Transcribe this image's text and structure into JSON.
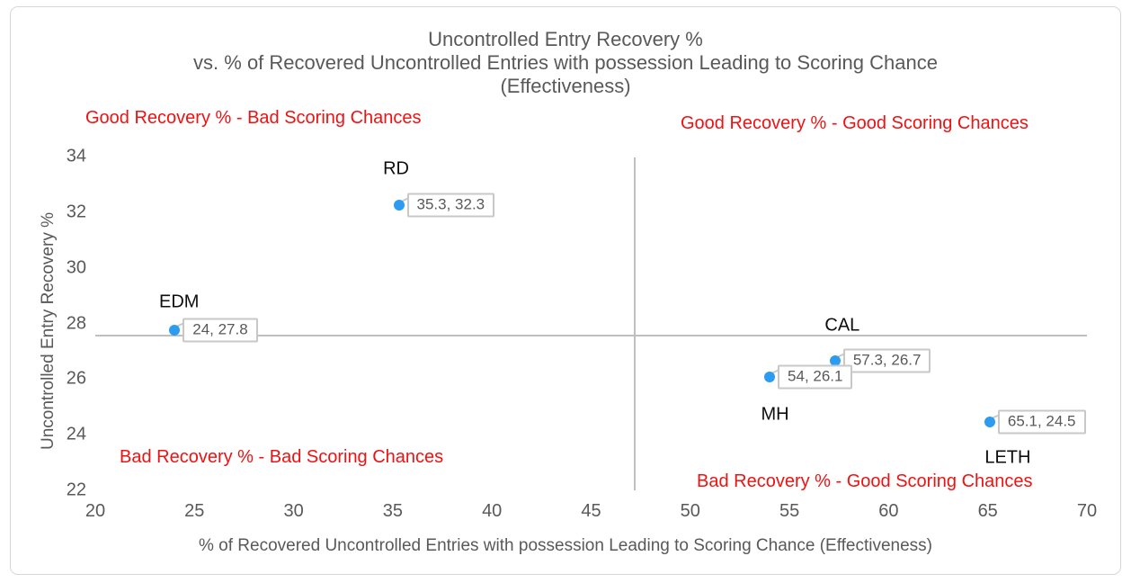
{
  "chart_data": {
    "type": "scatter",
    "title_lines": [
      "Uncontrolled Entry Recovery %",
      "vs. % of Recovered Uncontrolled Entries with possession Leading to Scoring Chance",
      "(Effectiveness)"
    ],
    "xlabel": "% of Recovered Uncontrolled Entries with possession Leading to Scoring Chance (Effectiveness)",
    "ylabel": "Uncontrolled Entry Recovery %",
    "xlim": [
      20,
      70
    ],
    "ylim": [
      22,
      34
    ],
    "x_ticks": [
      "20",
      "25",
      "30",
      "35",
      "40",
      "45",
      "50",
      "55",
      "60",
      "65",
      "70"
    ],
    "y_ticks": [
      "22",
      "24",
      "26",
      "28",
      "30",
      "32",
      "34"
    ],
    "grid": false,
    "legend": "none",
    "points": [
      {
        "team": "RD",
        "x": 35.3,
        "y": 32.3,
        "label": "35.3, 32.3",
        "team_label_dx": -3,
        "team_label_dy": -40
      },
      {
        "team": "EDM",
        "x": 24,
        "y": 27.8,
        "label": "24, 27.8",
        "team_label_dx": 5,
        "team_label_dy": -31
      },
      {
        "team": "CAL",
        "x": 57.3,
        "y": 26.7,
        "label": "57.3, 26.7",
        "team_label_dx": 8,
        "team_label_dy": -39
      },
      {
        "team": "MH",
        "x": 54,
        "y": 26.1,
        "label": "54, 26.1",
        "team_label_dx": 6,
        "team_label_dy": 42
      },
      {
        "team": "LETH",
        "x": 65.1,
        "y": 24.5,
        "label": "65.1, 24.5",
        "team_label_dx": 20,
        "team_label_dy": 40
      }
    ],
    "dividers": {
      "vertical_x": 47.2,
      "horizontal_y": 27.6
    },
    "quadrant_labels": [
      {
        "text": "Good Recovery % - Bad Scoring Chances",
        "position": "top-left"
      },
      {
        "text": "Good Recovery % - Good Scoring Chances",
        "position": "top-right"
      },
      {
        "text": "Bad Recovery % - Bad Scoring Chances",
        "position": "bottom-left"
      },
      {
        "text": "Bad Recovery % - Good Scoring Chances",
        "position": "bottom-right"
      }
    ],
    "colors": {
      "point": "#2d9bf0",
      "quadrant_label": "#ee1212",
      "divider": "#bfbfbf",
      "axis_text": "#595959",
      "title_text": "#595959",
      "callout_border": "#c8c8c8",
      "callout_text": "#595959",
      "team_label": "#0d0d0d"
    }
  }
}
